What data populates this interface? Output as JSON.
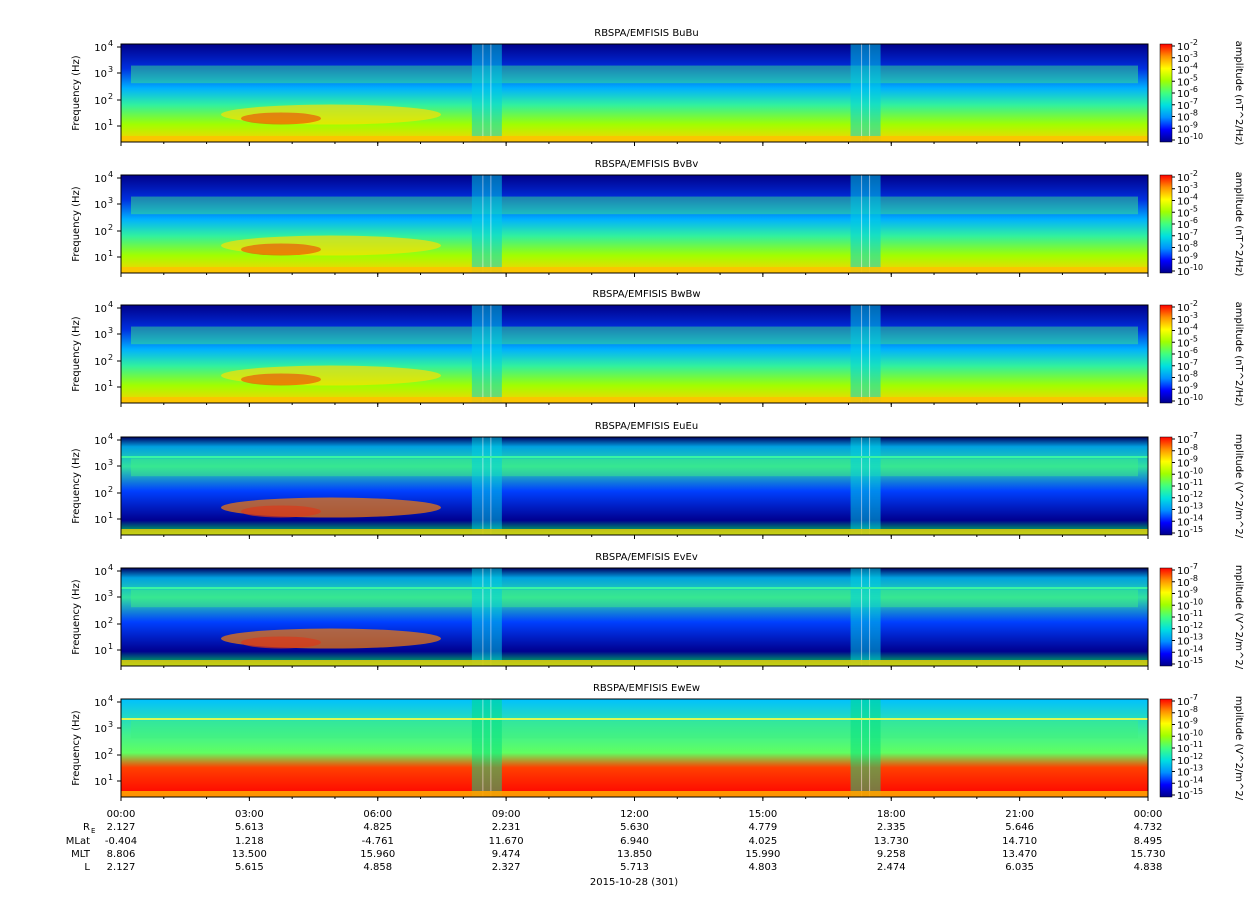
{
  "chart_data": {
    "type": "heatmap",
    "x_ticks": [
      "00:00",
      "03:00",
      "06:00",
      "09:00",
      "12:00",
      "15:00",
      "18:00",
      "21:00",
      "00:00"
    ],
    "x_range": [
      "00:00",
      "00:00"
    ],
    "date_label": "2015-10-28 (301)",
    "ephemeris": {
      "rows": [
        {
          "name": "R",
          "sub": "E",
          "values": [
            "2.127",
            "5.613",
            "4.825",
            "2.231",
            "5.630",
            "4.779",
            "2.335",
            "5.646",
            "4.732"
          ]
        },
        {
          "name": "MLat",
          "sub": "",
          "values": [
            "-0.404",
            "1.218",
            "-4.761",
            "11.670",
            "6.940",
            "4.025",
            "13.730",
            "14.710",
            "8.495"
          ]
        },
        {
          "name": "MLT",
          "sub": "",
          "values": [
            "8.806",
            "13.500",
            "15.960",
            "9.474",
            "13.850",
            "15.990",
            "9.258",
            "13.470",
            "15.730"
          ]
        },
        {
          "name": "L",
          "sub": "",
          "values": [
            "2.127",
            "5.615",
            "4.858",
            "2.327",
            "5.713",
            "4.803",
            "2.474",
            "6.035",
            "4.838"
          ]
        }
      ]
    },
    "colormap": [
      "#00008a",
      "#0000ff",
      "#0090ff",
      "#00e0e0",
      "#40ff80",
      "#a0ff00",
      "#ffff00",
      "#ff9000",
      "#ff0000"
    ],
    "panels": [
      {
        "title": "RBSPA/EMFISIS  BuBu",
        "ylabel": "Frequency (Hz)",
        "yticks": [
          "10",
          "10",
          "10",
          "10"
        ],
        "yexp": [
          "1",
          "2",
          "3",
          "4"
        ],
        "cbar_label": "amplitude (nT^2/Hz)",
        "cbar_ticks": [
          "10",
          "10",
          "10",
          "10",
          "10",
          "10",
          "10",
          "10",
          "10"
        ],
        "cbar_exp": [
          "-2",
          "-3",
          "-4",
          "-5",
          "-6",
          "-7",
          "-8",
          "-9",
          "-10"
        ]
      },
      {
        "title": "RBSPA/EMFISIS  BvBv",
        "ylabel": "Frequency (Hz)",
        "yticks": [
          "10",
          "10",
          "10",
          "10"
        ],
        "yexp": [
          "1",
          "2",
          "3",
          "4"
        ],
        "cbar_label": "amplitude (nT^2/Hz)",
        "cbar_ticks": [
          "10",
          "10",
          "10",
          "10",
          "10",
          "10",
          "10",
          "10",
          "10"
        ],
        "cbar_exp": [
          "-2",
          "-3",
          "-4",
          "-5",
          "-6",
          "-7",
          "-8",
          "-9",
          "-10"
        ]
      },
      {
        "title": "RBSPA/EMFISIS  BwBw",
        "ylabel": "Frequency (Hz)",
        "yticks": [
          "10",
          "10",
          "10",
          "10"
        ],
        "yexp": [
          "1",
          "2",
          "3",
          "4"
        ],
        "cbar_label": "amplitude (nT^2/Hz)",
        "cbar_ticks": [
          "10",
          "10",
          "10",
          "10",
          "10",
          "10",
          "10",
          "10",
          "10"
        ],
        "cbar_exp": [
          "-2",
          "-3",
          "-4",
          "-5",
          "-6",
          "-7",
          "-8",
          "-9",
          "-10"
        ]
      },
      {
        "title": "RBSPA/EMFISIS  EuEu",
        "ylabel": "Frequency (Hz)",
        "yticks": [
          "10",
          "10",
          "10",
          "10"
        ],
        "yexp": [
          "1",
          "2",
          "3",
          "4"
        ],
        "cbar_label": "mplitude (V^2/m^2/",
        "cbar_ticks": [
          "10",
          "10",
          "10",
          "10",
          "10",
          "10",
          "10",
          "10",
          "10"
        ],
        "cbar_exp": [
          "-7",
          "-8",
          "-9",
          "-10",
          "-11",
          "-12",
          "-13",
          "-14",
          "-15"
        ]
      },
      {
        "title": "RBSPA/EMFISIS  EvEv",
        "ylabel": "Frequency (Hz)",
        "yticks": [
          "10",
          "10",
          "10",
          "10"
        ],
        "yexp": [
          "1",
          "2",
          "3",
          "4"
        ],
        "cbar_label": "mplitude (V^2/m^2/",
        "cbar_ticks": [
          "10",
          "10",
          "10",
          "10",
          "10",
          "10",
          "10",
          "10",
          "10"
        ],
        "cbar_exp": [
          "-7",
          "-8",
          "-9",
          "-10",
          "-11",
          "-12",
          "-13",
          "-14",
          "-15"
        ]
      },
      {
        "title": "RBSPA/EMFISIS  EwEw",
        "ylabel": "Frequency (Hz)",
        "yticks": [
          "10",
          "10",
          "10",
          "10"
        ],
        "yexp": [
          "1",
          "2",
          "3",
          "4"
        ],
        "cbar_label": "mplitude (V^2/m^2/",
        "cbar_ticks": [
          "10",
          "10",
          "10",
          "10",
          "10",
          "10",
          "10",
          "10",
          "10"
        ],
        "cbar_exp": [
          "-7",
          "-8",
          "-9",
          "-10",
          "-11",
          "-12",
          "-13",
          "-14",
          "-15"
        ]
      }
    ]
  }
}
